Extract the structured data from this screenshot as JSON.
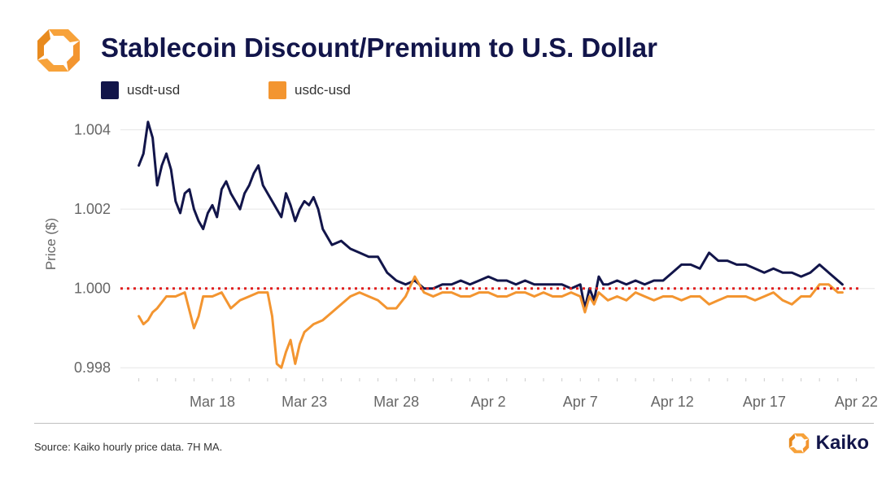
{
  "header": {
    "title": "Stablecoin Discount/Premium to U.S. Dollar"
  },
  "legend": [
    {
      "label": "usdt-usd",
      "color": "#12154a"
    },
    {
      "label": "usdc-usd",
      "color": "#f39530"
    }
  ],
  "footer": {
    "source": "Source: Kaiko hourly price data. 7H MA.",
    "brand_name": "Kaiko"
  },
  "colors": {
    "accent_orange": "#f39530",
    "navy": "#12154a",
    "reference_line": "#e02020"
  },
  "chart_data": {
    "type": "line",
    "title": "Stablecoin Discount/Premium to U.S. Dollar",
    "xlabel": "",
    "ylabel": "Price ($)",
    "x_unit": "date",
    "xlim": [
      "2023-03-13",
      "2023-04-23"
    ],
    "ylim": [
      0.9978,
      1.0043
    ],
    "y_ticks": [
      0.998,
      1.0,
      1.002,
      1.004
    ],
    "y_tick_labels": [
      "0.998",
      "1.000",
      "1.002",
      "1.004"
    ],
    "x_ticks": [
      "2023-03-18",
      "2023-03-23",
      "2023-03-28",
      "2023-04-02",
      "2023-04-07",
      "2023-04-12",
      "2023-04-17",
      "2023-04-22"
    ],
    "x_tick_labels": [
      "Mar 18",
      "Mar 23",
      "Mar 28",
      "Apr 2",
      "Apr 7",
      "Apr 12",
      "Apr 17",
      "Apr 22"
    ],
    "grid": "horizontal",
    "legend_position": "top-left",
    "reference_line": {
      "y": 1.0,
      "style": "dotted",
      "color": "#e02020"
    },
    "series": [
      {
        "name": "usdt-usd",
        "color": "#12154a",
        "x": [
          "2023-03-14 00:00",
          "2023-03-14 06:00",
          "2023-03-14 12:00",
          "2023-03-14 18:00",
          "2023-03-15 00:00",
          "2023-03-15 06:00",
          "2023-03-15 12:00",
          "2023-03-15 18:00",
          "2023-03-16 00:00",
          "2023-03-16 06:00",
          "2023-03-16 12:00",
          "2023-03-16 18:00",
          "2023-03-17 00:00",
          "2023-03-17 06:00",
          "2023-03-17 12:00",
          "2023-03-17 18:00",
          "2023-03-18 00:00",
          "2023-03-18 06:00",
          "2023-03-18 12:00",
          "2023-03-18 18:00",
          "2023-03-19 00:00",
          "2023-03-19 06:00",
          "2023-03-19 12:00",
          "2023-03-19 18:00",
          "2023-03-20 00:00",
          "2023-03-20 06:00",
          "2023-03-20 12:00",
          "2023-03-20 18:00",
          "2023-03-21 00:00",
          "2023-03-21 06:00",
          "2023-03-21 12:00",
          "2023-03-21 18:00",
          "2023-03-22 00:00",
          "2023-03-22 06:00",
          "2023-03-22 12:00",
          "2023-03-22 18:00",
          "2023-03-23 00:00",
          "2023-03-23 06:00",
          "2023-03-23 12:00",
          "2023-03-23 18:00",
          "2023-03-24 00:00",
          "2023-03-24 12:00",
          "2023-03-25 00:00",
          "2023-03-25 12:00",
          "2023-03-26 00:00",
          "2023-03-26 12:00",
          "2023-03-27 00:00",
          "2023-03-27 12:00",
          "2023-03-28 00:00",
          "2023-03-28 12:00",
          "2023-03-29 00:00",
          "2023-03-29 12:00",
          "2023-03-30 00:00",
          "2023-03-30 12:00",
          "2023-03-31 00:00",
          "2023-03-31 12:00",
          "2023-04-01 00:00",
          "2023-04-01 12:00",
          "2023-04-02 00:00",
          "2023-04-02 12:00",
          "2023-04-03 00:00",
          "2023-04-03 12:00",
          "2023-04-04 00:00",
          "2023-04-04 12:00",
          "2023-04-05 00:00",
          "2023-04-05 12:00",
          "2023-04-06 00:00",
          "2023-04-06 12:00",
          "2023-04-07 00:00",
          "2023-04-07 06:00",
          "2023-04-07 12:00",
          "2023-04-07 18:00",
          "2023-04-08 00:00",
          "2023-04-08 06:00",
          "2023-04-08 12:00",
          "2023-04-09 00:00",
          "2023-04-09 12:00",
          "2023-04-10 00:00",
          "2023-04-10 12:00",
          "2023-04-11 00:00",
          "2023-04-11 12:00",
          "2023-04-12 00:00",
          "2023-04-12 12:00",
          "2023-04-13 00:00",
          "2023-04-13 12:00",
          "2023-04-14 00:00",
          "2023-04-14 12:00",
          "2023-04-15 00:00",
          "2023-04-15 12:00",
          "2023-04-16 00:00",
          "2023-04-16 12:00",
          "2023-04-17 00:00",
          "2023-04-17 12:00",
          "2023-04-18 00:00",
          "2023-04-18 12:00",
          "2023-04-19 00:00",
          "2023-04-19 12:00",
          "2023-04-20 00:00",
          "2023-04-20 12:00",
          "2023-04-21 00:00",
          "2023-04-21 06:00"
        ],
        "values": [
          1.0031,
          1.0034,
          1.0042,
          1.0038,
          1.0026,
          1.0031,
          1.0034,
          1.003,
          1.0022,
          1.0019,
          1.0024,
          1.0025,
          1.002,
          1.0017,
          1.0015,
          1.0019,
          1.0021,
          1.0018,
          1.0025,
          1.0027,
          1.0024,
          1.0022,
          1.002,
          1.0024,
          1.0026,
          1.0029,
          1.0031,
          1.0026,
          1.0024,
          1.0022,
          1.002,
          1.0018,
          1.0024,
          1.0021,
          1.0017,
          1.002,
          1.0022,
          1.0021,
          1.0023,
          1.002,
          1.0015,
          1.0011,
          1.0012,
          1.001,
          1.0009,
          1.0008,
          1.0008,
          1.0004,
          1.0002,
          1.0001,
          1.0002,
          1.0,
          1.0,
          1.0001,
          1.0001,
          1.0002,
          1.0001,
          1.0002,
          1.0003,
          1.0002,
          1.0002,
          1.0001,
          1.0002,
          1.0001,
          1.0001,
          1.0001,
          1.0001,
          1.0,
          1.0001,
          0.9995,
          1.0,
          0.9997,
          1.0003,
          1.0001,
          1.0001,
          1.0002,
          1.0001,
          1.0002,
          1.0001,
          1.0002,
          1.0002,
          1.0004,
          1.0006,
          1.0006,
          1.0005,
          1.0009,
          1.0007,
          1.0007,
          1.0006,
          1.0006,
          1.0005,
          1.0004,
          1.0005,
          1.0004,
          1.0004,
          1.0003,
          1.0004,
          1.0006,
          1.0004,
          1.0002,
          1.0001
        ]
      },
      {
        "name": "usdc-usd",
        "color": "#f39530",
        "x": [
          "2023-03-14 00:00",
          "2023-03-14 06:00",
          "2023-03-14 12:00",
          "2023-03-14 18:00",
          "2023-03-15 00:00",
          "2023-03-15 12:00",
          "2023-03-16 00:00",
          "2023-03-16 12:00",
          "2023-03-17 00:00",
          "2023-03-17 06:00",
          "2023-03-17 12:00",
          "2023-03-18 00:00",
          "2023-03-18 12:00",
          "2023-03-19 00:00",
          "2023-03-19 12:00",
          "2023-03-20 00:00",
          "2023-03-20 12:00",
          "2023-03-21 00:00",
          "2023-03-21 06:00",
          "2023-03-21 12:00",
          "2023-03-21 18:00",
          "2023-03-22 00:00",
          "2023-03-22 06:00",
          "2023-03-22 12:00",
          "2023-03-22 18:00",
          "2023-03-23 00:00",
          "2023-03-23 12:00",
          "2023-03-24 00:00",
          "2023-03-24 12:00",
          "2023-03-25 00:00",
          "2023-03-25 12:00",
          "2023-03-26 00:00",
          "2023-03-26 12:00",
          "2023-03-27 00:00",
          "2023-03-27 12:00",
          "2023-03-28 00:00",
          "2023-03-28 12:00",
          "2023-03-29 00:00",
          "2023-03-29 12:00",
          "2023-03-30 00:00",
          "2023-03-30 12:00",
          "2023-03-31 00:00",
          "2023-03-31 12:00",
          "2023-04-01 00:00",
          "2023-04-01 12:00",
          "2023-04-02 00:00",
          "2023-04-02 12:00",
          "2023-04-03 00:00",
          "2023-04-03 12:00",
          "2023-04-04 00:00",
          "2023-04-04 12:00",
          "2023-04-05 00:00",
          "2023-04-05 12:00",
          "2023-04-06 00:00",
          "2023-04-06 12:00",
          "2023-04-07 00:00",
          "2023-04-07 06:00",
          "2023-04-07 12:00",
          "2023-04-07 18:00",
          "2023-04-08 00:00",
          "2023-04-08 12:00",
          "2023-04-09 00:00",
          "2023-04-09 12:00",
          "2023-04-10 00:00",
          "2023-04-10 12:00",
          "2023-04-11 00:00",
          "2023-04-11 12:00",
          "2023-04-12 00:00",
          "2023-04-12 12:00",
          "2023-04-13 00:00",
          "2023-04-13 12:00",
          "2023-04-14 00:00",
          "2023-04-14 12:00",
          "2023-04-15 00:00",
          "2023-04-15 12:00",
          "2023-04-16 00:00",
          "2023-04-16 12:00",
          "2023-04-17 00:00",
          "2023-04-17 12:00",
          "2023-04-18 00:00",
          "2023-04-18 12:00",
          "2023-04-19 00:00",
          "2023-04-19 12:00",
          "2023-04-20 00:00",
          "2023-04-20 12:00",
          "2023-04-21 00:00",
          "2023-04-21 06:00"
        ],
        "values": [
          0.9993,
          0.9991,
          0.9992,
          0.9994,
          0.9995,
          0.9998,
          0.9998,
          0.9999,
          0.999,
          0.9993,
          0.9998,
          0.9998,
          0.9999,
          0.9995,
          0.9997,
          0.9998,
          0.9999,
          0.9999,
          0.9993,
          0.9981,
          0.998,
          0.9984,
          0.9987,
          0.9981,
          0.9986,
          0.9989,
          0.9991,
          0.9992,
          0.9994,
          0.9996,
          0.9998,
          0.9999,
          0.9998,
          0.9997,
          0.9995,
          0.9995,
          0.9998,
          1.0003,
          0.9999,
          0.9998,
          0.9999,
          0.9999,
          0.9998,
          0.9998,
          0.9999,
          0.9999,
          0.9998,
          0.9998,
          0.9999,
          0.9999,
          0.9998,
          0.9999,
          0.9998,
          0.9998,
          0.9999,
          0.9998,
          0.9994,
          0.9998,
          0.9996,
          0.9999,
          0.9997,
          0.9998,
          0.9997,
          0.9999,
          0.9998,
          0.9997,
          0.9998,
          0.9998,
          0.9997,
          0.9998,
          0.9998,
          0.9996,
          0.9997,
          0.9998,
          0.9998,
          0.9998,
          0.9997,
          0.9998,
          0.9999,
          0.9997,
          0.9996,
          0.9998,
          0.9998,
          1.0001,
          1.0001,
          0.9999,
          0.9999
        ]
      }
    ]
  }
}
